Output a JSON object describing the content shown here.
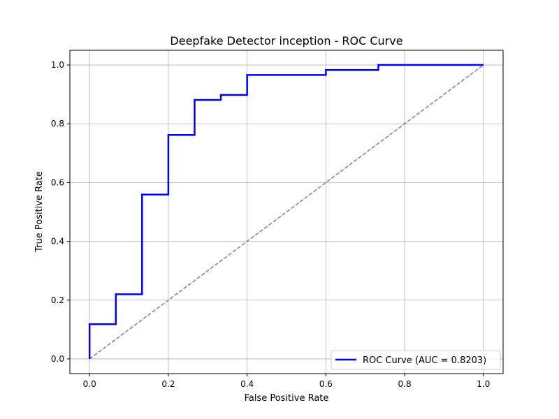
{
  "chart_data": {
    "type": "line",
    "title": "Deepfake Detector inception - ROC Curve",
    "xlabel": "False Positive Rate",
    "ylabel": "True Positive Rate",
    "xlim": [
      -0.05,
      1.05
    ],
    "ylim": [
      -0.05,
      1.05
    ],
    "xticks": [
      "0.0",
      "0.2",
      "0.4",
      "0.6",
      "0.8",
      "1.0"
    ],
    "yticks": [
      "0.0",
      "0.2",
      "0.4",
      "0.6",
      "0.8",
      "1.0"
    ],
    "grid": true,
    "legend_position": "lower-right",
    "series": [
      {
        "name": "ROC Curve (AUC = 0.8203)",
        "color": "#0000ff",
        "style": "solid",
        "x": [
          0.0,
          0.0,
          0.0667,
          0.0667,
          0.1333,
          0.1333,
          0.2,
          0.2,
          0.2667,
          0.2667,
          0.3333,
          0.3333,
          0.4,
          0.4,
          0.6,
          0.6,
          0.7333,
          0.7333,
          1.0
        ],
        "y": [
          0.0,
          0.118,
          0.118,
          0.22,
          0.22,
          0.559,
          0.559,
          0.762,
          0.762,
          0.881,
          0.881,
          0.898,
          0.898,
          0.966,
          0.966,
          0.983,
          0.983,
          1.0,
          1.0
        ]
      }
    ],
    "reference_line": {
      "color": "#808080",
      "style": "dashed",
      "x": [
        0.0,
        1.0
      ],
      "y": [
        0.0,
        1.0
      ]
    }
  }
}
